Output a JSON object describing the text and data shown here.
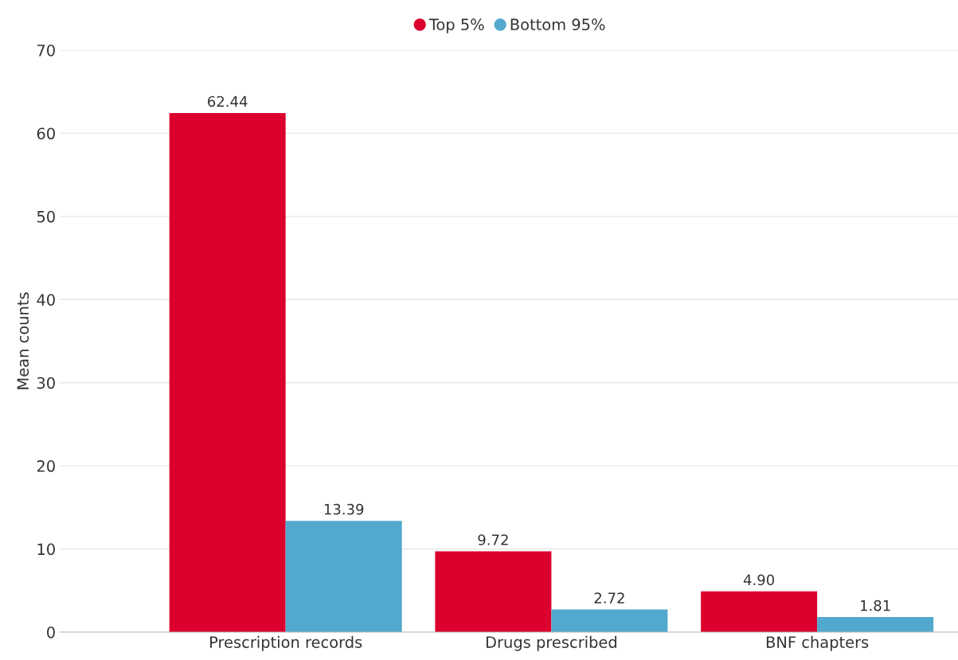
{
  "chart_data": {
    "type": "bar",
    "ylabel": "Mean counts",
    "categories": [
      "Prescription records",
      "Drugs prescribed",
      "BNF chapters"
    ],
    "series": [
      {
        "name": "Top 5%",
        "color": "#dc002e",
        "values": [
          62.44,
          9.72,
          4.9
        ],
        "value_labels": [
          "62.44",
          "9.72",
          "4.90"
        ]
      },
      {
        "name": "Bottom 95%",
        "color": "#53a9cd",
        "values": [
          13.39,
          2.72,
          1.81
        ],
        "value_labels": [
          "13.39",
          "2.72",
          "1.81"
        ]
      }
    ],
    "ylim": [
      0,
      70
    ],
    "yticks": [
      0,
      10,
      20,
      30,
      40,
      50,
      60,
      70
    ],
    "grid": "y",
    "legend": "top",
    "marker": "circle"
  }
}
